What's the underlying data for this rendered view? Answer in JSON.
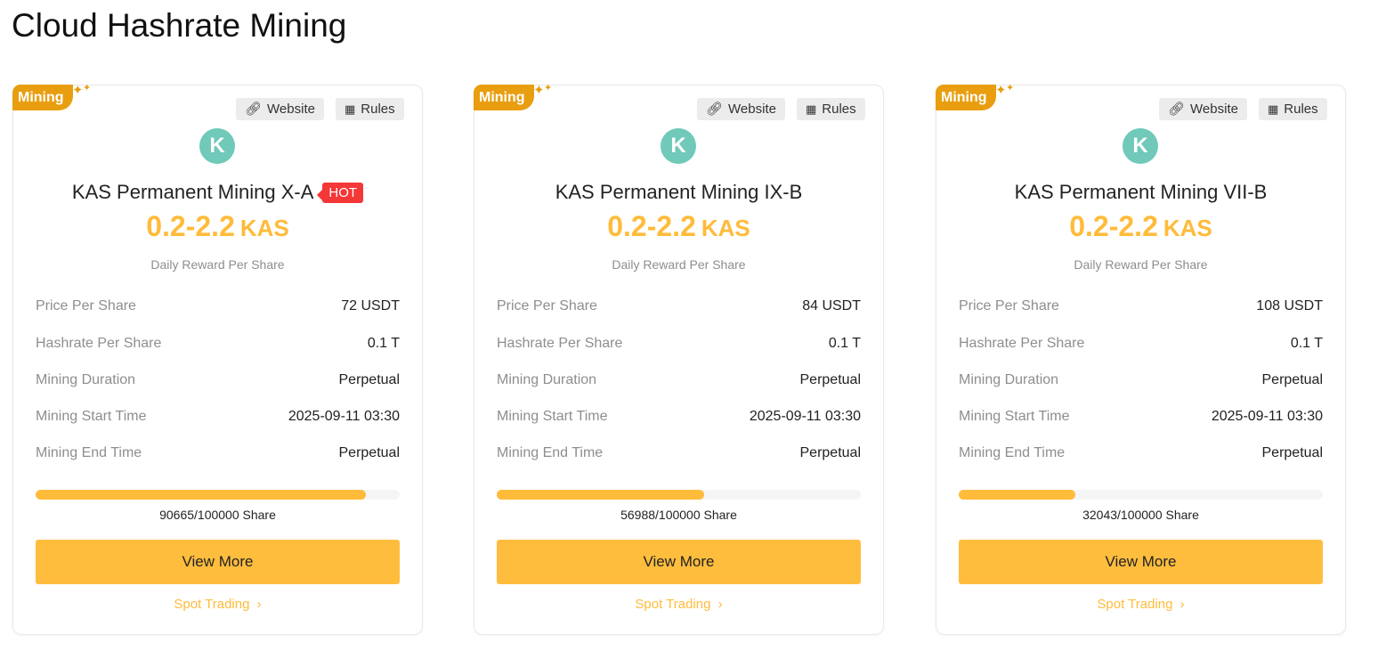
{
  "page_title": "Cloud Hashrate Mining",
  "colors": {
    "accent": "#ffbb3a",
    "badge": "#e89e0f",
    "hot": "#f43737",
    "logo": "#70c9b9"
  },
  "cards": [
    {
      "badge": "Mining",
      "website": "Website",
      "rules": "Rules",
      "name": "KAS Permanent Mining X-A",
      "hot": "HOT",
      "reward": "0.2-2.2",
      "unit": "KAS",
      "reward_label": "Daily Reward Per Share",
      "rows": [
        {
          "k": "Price Per Share",
          "v": "72 USDT"
        },
        {
          "k": "Hashrate Per Share",
          "v": "0.1 T"
        },
        {
          "k": "Mining Duration",
          "v": "Perpetual"
        },
        {
          "k": "Mining Start Time",
          "v": "2025-09-11 03:30"
        },
        {
          "k": "Mining End Time",
          "v": "Perpetual"
        }
      ],
      "sold": 90665,
      "total": 100000,
      "share_text": "90665/100000 Share",
      "view_more": "View More",
      "spot": "Spot Trading"
    },
    {
      "badge": "Mining",
      "website": "Website",
      "rules": "Rules",
      "name": "KAS Permanent Mining IX-B",
      "hot": null,
      "reward": "0.2-2.2",
      "unit": "KAS",
      "reward_label": "Daily Reward Per Share",
      "rows": [
        {
          "k": "Price Per Share",
          "v": "84 USDT"
        },
        {
          "k": "Hashrate Per Share",
          "v": "0.1 T"
        },
        {
          "k": "Mining Duration",
          "v": "Perpetual"
        },
        {
          "k": "Mining Start Time",
          "v": "2025-09-11 03:30"
        },
        {
          "k": "Mining End Time",
          "v": "Perpetual"
        }
      ],
      "sold": 56988,
      "total": 100000,
      "share_text": "56988/100000 Share",
      "view_more": "View More",
      "spot": "Spot Trading"
    },
    {
      "badge": "Mining",
      "website": "Website",
      "rules": "Rules",
      "name": "KAS Permanent Mining VII-B",
      "hot": null,
      "reward": "0.2-2.2",
      "unit": "KAS",
      "reward_label": "Daily Reward Per Share",
      "rows": [
        {
          "k": "Price Per Share",
          "v": "108 USDT"
        },
        {
          "k": "Hashrate Per Share",
          "v": "0.1 T"
        },
        {
          "k": "Mining Duration",
          "v": "Perpetual"
        },
        {
          "k": "Mining Start Time",
          "v": "2025-09-11 03:30"
        },
        {
          "k": "Mining End Time",
          "v": "Perpetual"
        }
      ],
      "sold": 32043,
      "total": 100000,
      "share_text": "32043/100000 Share",
      "view_more": "View More",
      "spot": "Spot Trading"
    }
  ]
}
